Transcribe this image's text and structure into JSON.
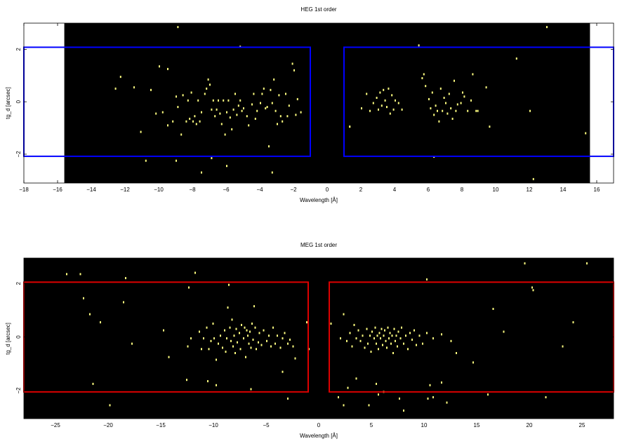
{
  "chart_data": [
    {
      "type": "heatmap",
      "title": "HEG 1st order",
      "xlabel": "Wavelength [Å]",
      "ylabel": "tg_d [arcsec]",
      "xlim": [
        -18,
        17
      ],
      "ylim": [
        -3.1,
        3.0
      ],
      "xticks": [
        -18,
        -16,
        -14,
        -12,
        -10,
        -8,
        -6,
        -4,
        -2,
        0,
        2,
        4,
        6,
        8,
        10,
        12,
        14,
        16
      ],
      "yticks": [
        -2,
        0,
        2
      ],
      "data_region_x": [
        -15.6,
        15.6
      ],
      "background_color": "#000000",
      "event_color": "#ffff80",
      "regions": [
        {
          "color": "#0000ff",
          "x": [
            -18,
            -1
          ],
          "y": [
            -2.08,
            2.08
          ]
        },
        {
          "color": "#0000ff",
          "x": [
            1,
            17
          ],
          "y": [
            -2.08,
            2.08
          ]
        }
      ],
      "events": [
        [
          -12.6,
          0.5
        ],
        [
          -12.3,
          0.95
        ],
        [
          -11.5,
          0.55
        ],
        [
          -11.1,
          -1.15
        ],
        [
          -10.8,
          -2.25
        ],
        [
          -10.5,
          0.45
        ],
        [
          -10.2,
          -0.45
        ],
        [
          -10.0,
          1.35
        ],
        [
          -9.8,
          -0.4
        ],
        [
          -9.5,
          -0.9
        ],
        [
          -9.5,
          1.25
        ],
        [
          -9.2,
          -0.75
        ],
        [
          -9.0,
          0.2
        ],
        [
          -8.9,
          -0.2
        ],
        [
          -8.7,
          -1.25
        ],
        [
          -8.6,
          0.25
        ],
        [
          -8.4,
          -0.75
        ],
        [
          -8.3,
          0.05
        ],
        [
          -8.2,
          -0.65
        ],
        [
          -8.1,
          0.35
        ],
        [
          -8.0,
          -0.75
        ],
        [
          -7.9,
          -0.55
        ],
        [
          -7.8,
          -0.85
        ],
        [
          -7.7,
          0.05
        ],
        [
          -7.6,
          -0.75
        ],
        [
          -7.5,
          -0.4
        ],
        [
          -7.3,
          0.3
        ],
        [
          -7.2,
          0.5
        ],
        [
          -7.1,
          0.85
        ],
        [
          -7.0,
          0.65
        ],
        [
          -6.9,
          -0.3
        ],
        [
          -6.8,
          0.05
        ],
        [
          -6.7,
          -0.55
        ],
        [
          -6.6,
          -0.3
        ],
        [
          -6.5,
          0.05
        ],
        [
          -6.4,
          -0.45
        ],
        [
          -6.3,
          -0.85
        ],
        [
          -6.2,
          0.05
        ],
        [
          -6.1,
          -1.25
        ],
        [
          -6.0,
          -0.4
        ],
        [
          -5.9,
          0.05
        ],
        [
          -5.8,
          -0.6
        ],
        [
          -5.7,
          -1.05
        ],
        [
          -5.6,
          -0.3
        ],
        [
          -5.5,
          0.3
        ],
        [
          -5.4,
          -0.5
        ],
        [
          -5.3,
          -0.15
        ],
        [
          -5.2,
          0.05
        ],
        [
          -5.1,
          -0.35
        ],
        [
          -5.0,
          -0.25
        ],
        [
          -4.8,
          -0.55
        ],
        [
          -4.7,
          -0.9
        ],
        [
          -4.5,
          -0.1
        ],
        [
          -4.4,
          0.3
        ],
        [
          -4.3,
          -0.65
        ],
        [
          -4.2,
          -0.35
        ],
        [
          -4.0,
          -0.05
        ],
        [
          -3.9,
          0.3
        ],
        [
          -3.8,
          0.5
        ],
        [
          -3.7,
          -0.25
        ],
        [
          -3.6,
          -0.2
        ],
        [
          -3.5,
          -1.7
        ],
        [
          -3.4,
          0.45
        ],
        [
          -3.3,
          -0.05
        ],
        [
          -3.2,
          0.85
        ],
        [
          -3.1,
          -0.35
        ],
        [
          -3.0,
          -0.85
        ],
        [
          -2.9,
          0.25
        ],
        [
          -2.8,
          -0.55
        ],
        [
          -2.7,
          -0.75
        ],
        [
          -2.5,
          0.3
        ],
        [
          -2.4,
          -0.55
        ],
        [
          -2.3,
          -0.15
        ],
        [
          -2.1,
          1.45
        ],
        [
          -2.0,
          1.2
        ],
        [
          -1.9,
          -0.5
        ],
        [
          -1.8,
          0.1
        ],
        [
          -1.6,
          -0.4
        ],
        [
          -8.9,
          2.85
        ],
        [
          -5.2,
          2.1
        ],
        [
          -7.5,
          -2.7
        ],
        [
          -3.3,
          -2.7
        ],
        [
          -6.9,
          -2.15
        ],
        [
          -6.0,
          -2.45
        ],
        [
          -9.0,
          -2.25
        ],
        [
          1.3,
          -0.95
        ],
        [
          2.0,
          -0.25
        ],
        [
          2.3,
          0.3
        ],
        [
          2.5,
          -0.35
        ],
        [
          2.7,
          -0.05
        ],
        [
          2.9,
          0.15
        ],
        [
          3.0,
          -0.3
        ],
        [
          3.1,
          0.35
        ],
        [
          3.2,
          -0.15
        ],
        [
          3.3,
          0.45
        ],
        [
          3.4,
          0.05
        ],
        [
          3.5,
          -0.2
        ],
        [
          3.6,
          0.5
        ],
        [
          3.7,
          -0.45
        ],
        [
          3.8,
          0.25
        ],
        [
          3.9,
          -0.3
        ],
        [
          4.0,
          0.05
        ],
        [
          4.2,
          -0.05
        ],
        [
          4.4,
          -0.3
        ],
        [
          5.4,
          2.15
        ],
        [
          5.6,
          0.9
        ],
        [
          5.7,
          1.05
        ],
        [
          5.8,
          0.6
        ],
        [
          6.0,
          0.1
        ],
        [
          6.1,
          -0.25
        ],
        [
          6.2,
          0.35
        ],
        [
          6.3,
          -0.5
        ],
        [
          6.4,
          -0.15
        ],
        [
          6.5,
          -0.35
        ],
        [
          6.6,
          -0.75
        ],
        [
          6.7,
          0.5
        ],
        [
          6.8,
          -0.35
        ],
        [
          6.9,
          0.15
        ],
        [
          7.0,
          -0.05
        ],
        [
          7.1,
          -0.45
        ],
        [
          7.2,
          0.3
        ],
        [
          7.3,
          -0.25
        ],
        [
          7.4,
          -0.65
        ],
        [
          7.5,
          0.8
        ],
        [
          7.6,
          -0.35
        ],
        [
          7.7,
          -0.1
        ],
        [
          7.9,
          -0.05
        ],
        [
          8.0,
          0.35
        ],
        [
          8.1,
          0.2
        ],
        [
          8.3,
          -0.35
        ],
        [
          8.5,
          0.05
        ],
        [
          8.6,
          1.05
        ],
        [
          8.8,
          -0.35
        ],
        [
          8.9,
          -0.35
        ],
        [
          9.4,
          0.55
        ],
        [
          9.6,
          -0.95
        ],
        [
          11.2,
          1.65
        ],
        [
          12.0,
          -0.35
        ],
        [
          13.0,
          2.85
        ],
        [
          15.3,
          -1.2
        ],
        [
          12.2,
          -2.95
        ],
        [
          6.3,
          -2.1
        ],
        [
          1.3,
          -0.95
        ]
      ]
    },
    {
      "type": "heatmap",
      "title": "MEG 1st order",
      "xlabel": "Wavelength [Å]",
      "ylabel": "tg_d [arcsec]",
      "xlim": [
        -28,
        28
      ],
      "ylim": [
        -3.05,
        2.95
      ],
      "xticks": [
        -25,
        -20,
        -15,
        -10,
        -5,
        0,
        5,
        10,
        15,
        20,
        25
      ],
      "yticks": [
        -2,
        0,
        2
      ],
      "data_region_x": [
        -28,
        28
      ],
      "background_color": "#000000",
      "event_color": "#ffff80",
      "regions": [
        {
          "color": "#dd0000",
          "x": [
            -28,
            -1
          ],
          "y": [
            -2.05,
            2.05
          ]
        },
        {
          "color": "#dd0000",
          "x": [
            1,
            28
          ],
          "y": [
            -2.05,
            2.05
          ]
        }
      ],
      "events": [
        [
          -24.0,
          2.35
        ],
        [
          -22.7,
          2.35
        ],
        [
          -22.4,
          1.45
        ],
        [
          -21.8,
          0.85
        ],
        [
          -21.5,
          -1.75
        ],
        [
          -20.8,
          0.55
        ],
        [
          -19.9,
          -2.55
        ],
        [
          -18.6,
          1.3
        ],
        [
          -18.4,
          2.2
        ],
        [
          -17.8,
          -0.25
        ],
        [
          -14.8,
          0.25
        ],
        [
          -14.3,
          -0.75
        ],
        [
          -12.5,
          -0.35
        ],
        [
          -12.4,
          1.85
        ],
        [
          -12.2,
          -0.05
        ],
        [
          -11.8,
          2.4
        ],
        [
          -11.4,
          0.2
        ],
        [
          -11.2,
          -0.45
        ],
        [
          -11.0,
          -0.05
        ],
        [
          -10.7,
          0.35
        ],
        [
          -10.5,
          -0.45
        ],
        [
          -10.3,
          -0.15
        ],
        [
          -10.1,
          0.5
        ],
        [
          -10.0,
          -0.05
        ],
        [
          -9.8,
          -0.85
        ],
        [
          -9.6,
          -0.25
        ],
        [
          -9.4,
          0.05
        ],
        [
          -9.2,
          -0.4
        ],
        [
          -9.0,
          0.25
        ],
        [
          -8.9,
          -0.55
        ],
        [
          -8.8,
          -0.05
        ],
        [
          -8.7,
          1.1
        ],
        [
          -8.6,
          1.95
        ],
        [
          -8.5,
          0.35
        ],
        [
          -8.4,
          -0.15
        ],
        [
          -8.3,
          0.65
        ],
        [
          -8.2,
          -0.35
        ],
        [
          -8.1,
          0.05
        ],
        [
          -8.0,
          -0.6
        ],
        [
          -7.9,
          0.3
        ],
        [
          -7.8,
          -0.2
        ],
        [
          -7.6,
          0.15
        ],
        [
          -7.5,
          -0.45
        ],
        [
          -7.4,
          0.45
        ],
        [
          -7.2,
          -0.05
        ],
        [
          -7.1,
          0.35
        ],
        [
          -7.0,
          -0.75
        ],
        [
          -6.9,
          0.25
        ],
        [
          -6.8,
          0.05
        ],
        [
          -6.7,
          -0.25
        ],
        [
          -6.6,
          0.2
        ],
        [
          -6.5,
          -0.4
        ],
        [
          -6.4,
          0.5
        ],
        [
          -6.3,
          -0.1
        ],
        [
          -6.2,
          1.15
        ],
        [
          -6.1,
          0.35
        ],
        [
          -6.0,
          -0.45
        ],
        [
          -5.8,
          -0.2
        ],
        [
          -5.7,
          0.15
        ],
        [
          -5.5,
          -0.3
        ],
        [
          -5.3,
          0.25
        ],
        [
          -5.0,
          -0.15
        ],
        [
          -4.8,
          0.05
        ],
        [
          -4.6,
          -0.35
        ],
        [
          -4.4,
          0.35
        ],
        [
          -4.2,
          -0.25
        ],
        [
          -4.0,
          0.05
        ],
        [
          -3.7,
          -0.4
        ],
        [
          -3.5,
          -0.05
        ],
        [
          -3.3,
          0.15
        ],
        [
          -3.0,
          -0.25
        ],
        [
          -2.8,
          -0.1
        ],
        [
          -2.5,
          -0.35
        ],
        [
          -2.3,
          -0.8
        ],
        [
          -1.2,
          0.55
        ],
        [
          -1.0,
          -0.45
        ],
        [
          -3.5,
          -1.3
        ],
        [
          -6.5,
          -1.95
        ],
        [
          -9.8,
          -1.8
        ],
        [
          -12.6,
          -1.6
        ],
        [
          -3.0,
          -2.3
        ],
        [
          -10.6,
          -1.65
        ],
        [
          1.1,
          0.5
        ],
        [
          2.0,
          -0.05
        ],
        [
          2.3,
          0.85
        ],
        [
          2.6,
          -0.15
        ],
        [
          2.9,
          0.15
        ],
        [
          3.1,
          -0.35
        ],
        [
          3.3,
          0.45
        ],
        [
          3.5,
          -0.05
        ],
        [
          3.7,
          0.25
        ],
        [
          3.9,
          -0.15
        ],
        [
          4.1,
          0.05
        ],
        [
          4.3,
          -0.4
        ],
        [
          4.5,
          0.3
        ],
        [
          4.6,
          -0.25
        ],
        [
          4.8,
          0.05
        ],
        [
          4.9,
          -0.55
        ],
        [
          5.0,
          0.2
        ],
        [
          5.2,
          -0.05
        ],
        [
          5.3,
          0.35
        ],
        [
          5.4,
          -0.25
        ],
        [
          5.5,
          0.05
        ],
        [
          5.6,
          -0.45
        ],
        [
          5.7,
          0.15
        ],
        [
          5.8,
          -0.05
        ],
        [
          5.9,
          0.3
        ],
        [
          6.0,
          -0.3
        ],
        [
          6.1,
          0.05
        ],
        [
          6.2,
          0.25
        ],
        [
          6.3,
          -0.15
        ],
        [
          6.4,
          -0.4
        ],
        [
          6.5,
          0.35
        ],
        [
          6.6,
          -0.05
        ],
        [
          6.7,
          0.15
        ],
        [
          6.8,
          -0.25
        ],
        [
          6.9,
          0.05
        ],
        [
          7.0,
          -0.6
        ],
        [
          7.1,
          0.3
        ],
        [
          7.2,
          -0.15
        ],
        [
          7.3,
          0.05
        ],
        [
          7.4,
          -0.35
        ],
        [
          7.5,
          0.2
        ],
        [
          7.7,
          -0.05
        ],
        [
          7.8,
          0.35
        ],
        [
          8.0,
          -0.25
        ],
        [
          8.2,
          0.05
        ],
        [
          8.4,
          -0.45
        ],
        [
          8.6,
          0.15
        ],
        [
          8.8,
          -0.1
        ],
        [
          9.0,
          0.25
        ],
        [
          9.2,
          -0.3
        ],
        [
          9.5,
          0.05
        ],
        [
          9.8,
          -0.25
        ],
        [
          10.2,
          0.15
        ],
        [
          10.8,
          -0.05
        ],
        [
          11.6,
          0.1
        ],
        [
          12.5,
          -0.15
        ],
        [
          13.0,
          -0.6
        ],
        [
          14.6,
          -0.95
        ],
        [
          17.5,
          0.2
        ],
        [
          16.5,
          1.05
        ],
        [
          10.2,
          2.15
        ],
        [
          10.5,
          -1.8
        ],
        [
          11.6,
          -1.7
        ],
        [
          10.8,
          -2.25
        ],
        [
          12.1,
          -2.45
        ],
        [
          5.6,
          -2.15
        ],
        [
          5.4,
          -1.75
        ],
        [
          3.5,
          -1.55
        ],
        [
          2.7,
          -1.9
        ],
        [
          2.3,
          -2.55
        ],
        [
          4.7,
          -2.55
        ],
        [
          8.0,
          -2.75
        ],
        [
          10.3,
          -2.3
        ],
        [
          7.6,
          -2.3
        ],
        [
          6.1,
          -2.05
        ],
        [
          19.5,
          2.75
        ],
        [
          25.4,
          2.75
        ],
        [
          20.3,
          1.75
        ],
        [
          21.5,
          -2.25
        ],
        [
          23.1,
          -0.35
        ],
        [
          16.0,
          -2.15
        ],
        [
          20.2,
          1.85
        ],
        [
          24.1,
          0.55
        ],
        [
          1.8,
          -2.25
        ]
      ]
    }
  ]
}
